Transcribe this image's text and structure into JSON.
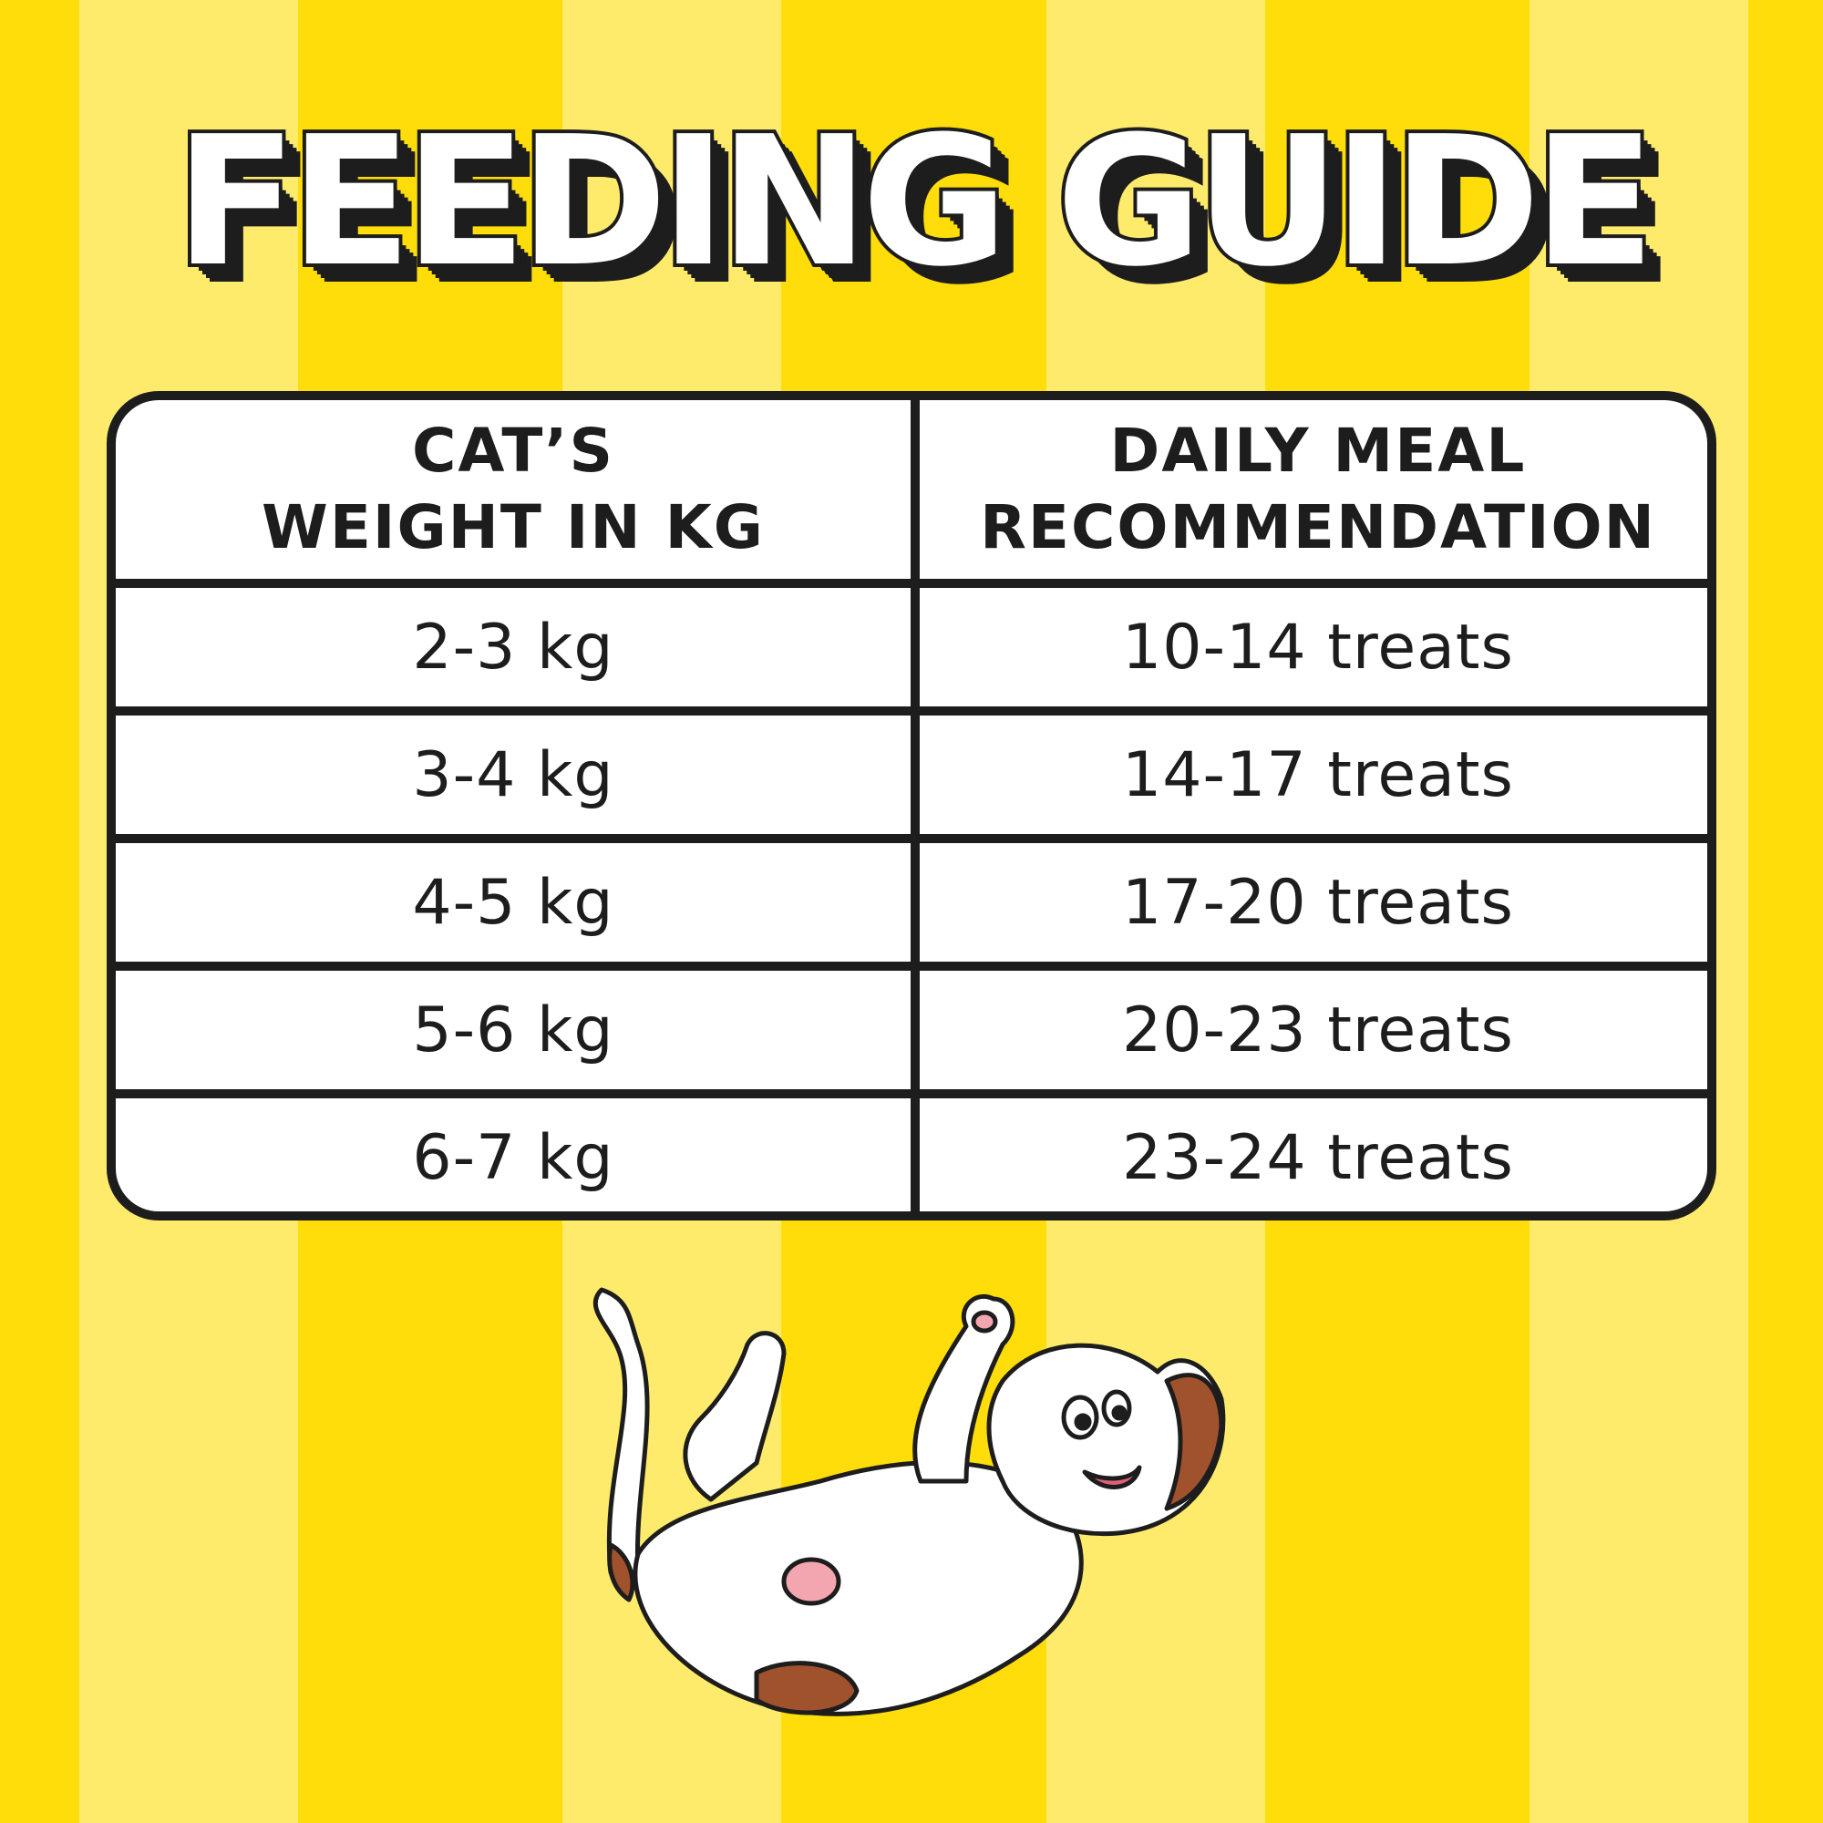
{
  "title": "FEEDING GUIDE",
  "colors": {
    "stripe_dark": "#FFDD0A",
    "stripe_light": "#FFEB6B",
    "ink": "#1D1D1D",
    "table_bg": "#FFFFFF"
  },
  "table": {
    "headers": [
      "CAT'S\nWEIGHT IN KG",
      "DAILY MEAL\nRECOMMENDATION"
    ],
    "header_lines": [
      [
        "CAT’S",
        "WEIGHT IN KG"
      ],
      [
        "DAILY MEAL",
        "RECOMMENDATION"
      ]
    ],
    "rows": [
      {
        "weight": "2-3 kg",
        "meal": "10-14 treats"
      },
      {
        "weight": "3-4 kg",
        "meal": "14-17 treats"
      },
      {
        "weight": "4-5 kg",
        "meal": "17-20 treats"
      },
      {
        "weight": "5-6 kg",
        "meal": "20-23 treats"
      },
      {
        "weight": "6-7 kg",
        "meal": "23-24 treats"
      }
    ]
  },
  "illustration": "cartoon-cat-lying-on-back"
}
